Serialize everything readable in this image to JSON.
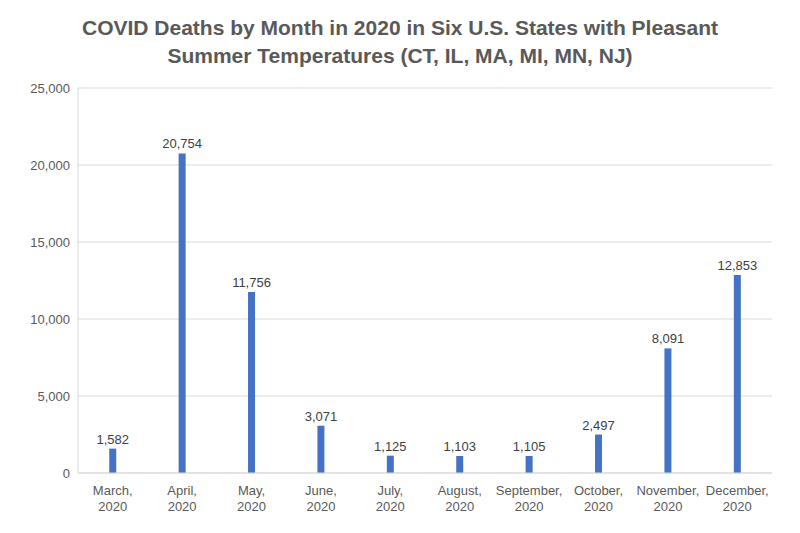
{
  "chart_data": {
    "type": "bar",
    "title": "COVID Deaths by Month in 2020 in Six U.S. States with Pleasant Summer Temperatures (CT, IL, MA, MI, MN, NJ)",
    "categories": [
      "March, 2020",
      "April, 2020",
      "May, 2020",
      "June, 2020",
      "July, 2020",
      "August, 2020",
      "September, 2020",
      "October, 2020",
      "November, 2020",
      "December, 2020"
    ],
    "values": [
      1582,
      20754,
      11756,
      3071,
      1125,
      1103,
      1105,
      2497,
      8091,
      12853
    ],
    "value_labels": [
      "1,582",
      "20,754",
      "11,756",
      "3,071",
      "1,125",
      "1,103",
      "1,105",
      "2,497",
      "8,091",
      "12,853"
    ],
    "color": "#4472c4",
    "ylim": [
      0,
      25000
    ],
    "yticks": [
      0,
      {
        "value": 5000,
        "label": "5,000"
      },
      {
        "value": 10000,
        "label": "10,000"
      },
      {
        "value": 15000,
        "label": "15,000"
      },
      {
        "value": 20000,
        "label": "20,000"
      },
      {
        "value": 25000,
        "label": "25,000"
      }
    ],
    "grid": true,
    "data_labels": true
  }
}
